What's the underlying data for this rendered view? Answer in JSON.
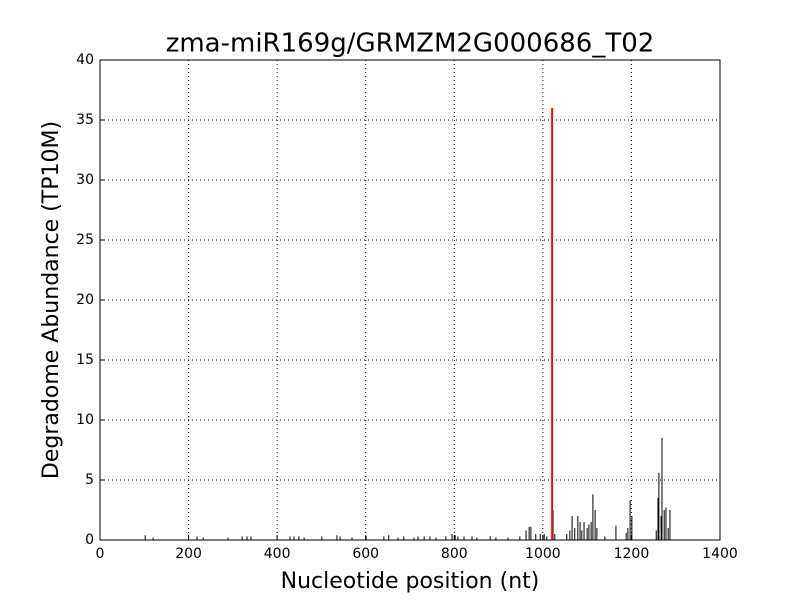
{
  "chart_data": {
    "type": "stem",
    "title": "zma-miR169g/GRMZM2G000686_T02",
    "x_label": "Nucleotide position (nt)",
    "y_label": "Degradome Abundance (TP10M)",
    "xlim": [
      0,
      1400
    ],
    "ylim": [
      0,
      40
    ],
    "xticks": [
      0,
      200,
      400,
      600,
      800,
      1000,
      1200,
      1400
    ],
    "yticks": [
      0,
      5,
      10,
      15,
      20,
      25,
      30,
      35,
      40
    ],
    "grid": true,
    "series": [
      {
        "color": "#000000",
        "x": [
          102,
          120,
          219,
          233,
          289,
          321,
          332,
          341,
          429,
          438,
          449,
          461,
          501,
          535,
          542,
          569,
          601,
          641,
          652,
          673,
          686,
          709,
          718,
          732,
          745,
          759,
          781,
          795,
          802,
          808,
          822,
          840,
          851,
          881,
          894,
          921,
          948,
          962,
          969,
          973,
          984,
          994,
          1003,
          1009,
          1023,
          1027,
          1054,
          1061,
          1066,
          1072,
          1079,
          1084,
          1088,
          1093,
          1100,
          1104,
          1109,
          1113,
          1118,
          1122,
          1140,
          1165,
          1188,
          1192,
          1197,
          1201,
          1256,
          1260,
          1262,
          1267,
          1269,
          1274,
          1278,
          1283,
          1287
        ],
        "values": [
          0.4,
          0.2,
          0.3,
          0.2,
          0.2,
          0.3,
          0.3,
          0.3,
          0.3,
          0.3,
          0.3,
          0.2,
          0.3,
          0.4,
          0.3,
          0.2,
          0.3,
          0.3,
          0.4,
          0.2,
          0.3,
          0.2,
          0.3,
          0.3,
          0.3,
          0.2,
          0.3,
          0.5,
          0.4,
          0.3,
          0.3,
          0.3,
          0.2,
          0.3,
          0.2,
          0.2,
          0.3,
          0.8,
          1.1,
          1.1,
          0.5,
          0.5,
          0.5,
          0.3,
          2.5,
          0.5,
          0.5,
          0.8,
          2.0,
          1.0,
          2.0,
          1.5,
          0.8,
          1.5,
          1.0,
          1.3,
          1.5,
          3.8,
          2.5,
          1.0,
          0.3,
          1.2,
          0.6,
          1.0,
          3.3,
          2.0,
          0.8,
          3.5,
          5.6,
          2.0,
          8.5,
          2.5,
          2.7,
          1.0,
          2.5
        ]
      },
      {
        "color": "#ff0000",
        "x": [
          1021
        ],
        "values": [
          36
        ]
      }
    ]
  }
}
